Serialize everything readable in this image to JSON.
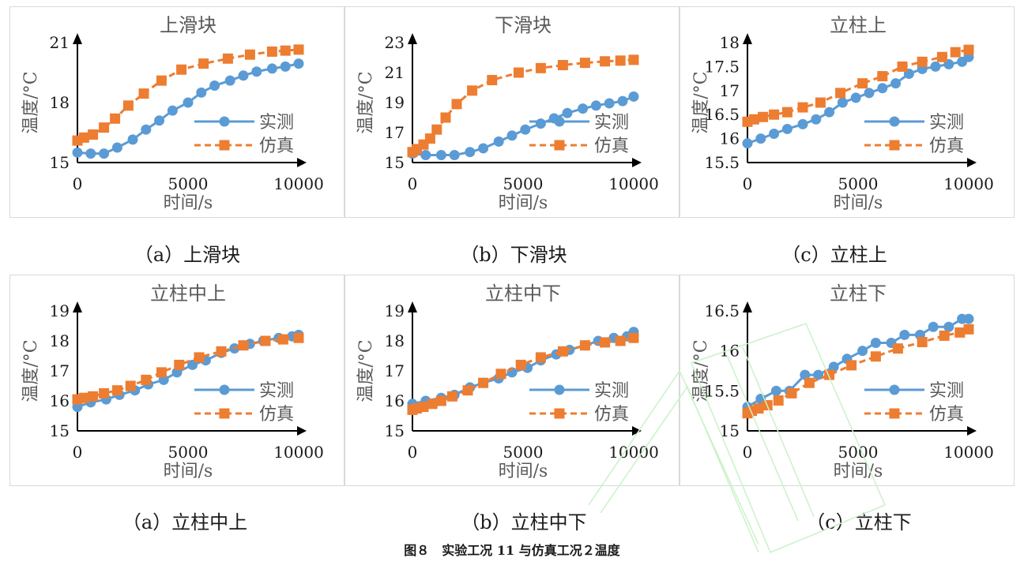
{
  "figure_title": "图８　实验工况 11 与仿真工况２温度",
  "captions": [
    "（a）上滑块",
    "（b）下滑块",
    "（c）立柱上",
    "（a）立柱中上",
    "（b）立柱中下",
    "（c）立柱下"
  ],
  "colors": {
    "measured": "#5B9BD5",
    "simulated": "#ED7D31",
    "axis": "#000000",
    "frame": "#D9D9D9",
    "watermark": "#C9F2C9"
  },
  "chart_data": [
    {
      "type": "line",
      "title": "上滑块",
      "xlabel": "时间/s",
      "ylabel": "温度/°C",
      "xlim": [
        0,
        10000
      ],
      "ylim": [
        15,
        21
      ],
      "xticks": [
        "0",
        "5000",
        "10000"
      ],
      "yticks": [
        "15",
        "18",
        "21"
      ],
      "legend_position": "right",
      "series": [
        {
          "name": "实测",
          "marker": "circle",
          "line": "solid",
          "x": [
            0,
            600,
            1200,
            1800,
            2500,
            3100,
            3700,
            4300,
            5000,
            5600,
            6200,
            6900,
            7500,
            8100,
            8800,
            9400,
            10000
          ],
          "y": [
            15.5,
            15.45,
            15.45,
            15.75,
            16.15,
            16.65,
            17.1,
            17.6,
            18.0,
            18.5,
            18.85,
            19.1,
            19.35,
            19.55,
            19.7,
            19.8,
            19.95
          ]
        },
        {
          "name": "仿真",
          "marker": "square",
          "line": "dashed",
          "x": [
            0,
            300,
            700,
            1200,
            1700,
            2300,
            3000,
            3800,
            4700,
            5700,
            6800,
            7800,
            8800,
            9400,
            10000
          ],
          "y": [
            16.1,
            16.25,
            16.4,
            16.75,
            17.2,
            17.85,
            18.45,
            19.1,
            19.65,
            19.95,
            20.2,
            20.4,
            20.55,
            20.6,
            20.65
          ]
        }
      ]
    },
    {
      "type": "line",
      "title": "下滑块",
      "xlabel": "时间/s",
      "ylabel": "温度/°C",
      "xlim": [
        0,
        10000
      ],
      "ylim": [
        15,
        23
      ],
      "xticks": [
        "0",
        "5000",
        "10000"
      ],
      "yticks": [
        "15",
        "17",
        "19",
        "21",
        "23"
      ],
      "legend_position": "right",
      "series": [
        {
          "name": "实测",
          "marker": "circle",
          "line": "solid",
          "x": [
            0,
            600,
            1300,
            1900,
            2600,
            3200,
            3900,
            4500,
            5100,
            5800,
            6400,
            7000,
            7700,
            8300,
            8900,
            9500,
            10000
          ],
          "y": [
            15.6,
            15.5,
            15.5,
            15.5,
            15.7,
            15.95,
            16.4,
            16.8,
            17.2,
            17.6,
            17.95,
            18.3,
            18.6,
            18.8,
            18.95,
            19.1,
            19.4
          ]
        },
        {
          "name": "仿真",
          "marker": "square",
          "line": "dashed",
          "x": [
            0,
            200,
            500,
            800,
            1100,
            1500,
            2000,
            2700,
            3600,
            4800,
            5800,
            6800,
            7800,
            8700,
            9400,
            10000
          ],
          "y": [
            15.7,
            15.9,
            16.2,
            16.6,
            17.2,
            18.0,
            18.9,
            19.8,
            20.5,
            21.0,
            21.3,
            21.5,
            21.65,
            21.75,
            21.8,
            21.85
          ]
        }
      ]
    },
    {
      "type": "line",
      "title": "立柱上",
      "xlabel": "时间/s",
      "ylabel": "温度/°C",
      "xlim": [
        0,
        10000
      ],
      "ylim": [
        15.5,
        18
      ],
      "xticks": [
        "0",
        "5000",
        "10000"
      ],
      "yticks": [
        "15.5",
        "16",
        "16.5",
        "17",
        "17.5",
        "18"
      ],
      "legend_position": "right",
      "series": [
        {
          "name": "实测",
          "marker": "circle",
          "line": "solid",
          "x": [
            0,
            600,
            1200,
            1800,
            2500,
            3100,
            3700,
            4300,
            4900,
            5500,
            6100,
            6700,
            7300,
            7900,
            8500,
            9100,
            9700,
            10000
          ],
          "y": [
            15.9,
            16.0,
            16.1,
            16.2,
            16.3,
            16.4,
            16.55,
            16.75,
            16.85,
            16.95,
            17.05,
            17.15,
            17.35,
            17.45,
            17.5,
            17.55,
            17.6,
            17.7
          ]
        },
        {
          "name": "仿真",
          "marker": "square",
          "line": "dashed",
          "x": [
            0,
            300,
            700,
            1200,
            1800,
            2500,
            3300,
            4200,
            5200,
            6100,
            7000,
            7900,
            8800,
            9400,
            10000
          ],
          "y": [
            16.35,
            16.4,
            16.45,
            16.5,
            16.55,
            16.65,
            16.75,
            16.95,
            17.15,
            17.3,
            17.5,
            17.6,
            17.7,
            17.8,
            17.85
          ]
        }
      ]
    },
    {
      "type": "line",
      "title": "立柱中上",
      "xlabel": "时间/s",
      "ylabel": "温度/°C",
      "xlim": [
        0,
        10000
      ],
      "ylim": [
        15,
        19
      ],
      "xticks": [
        "0",
        "5000",
        "10000"
      ],
      "yticks": [
        "15",
        "16",
        "17",
        "18",
        "19"
      ],
      "legend_position": "right",
      "series": [
        {
          "name": "实测",
          "marker": "circle",
          "line": "solid",
          "x": [
            0,
            600,
            1300,
            1900,
            2600,
            3200,
            3900,
            4500,
            5200,
            5800,
            6500,
            7100,
            7800,
            8400,
            9100,
            9700,
            10000
          ],
          "y": [
            15.8,
            15.95,
            16.05,
            16.2,
            16.35,
            16.55,
            16.7,
            16.95,
            17.2,
            17.35,
            17.6,
            17.75,
            17.9,
            18.0,
            18.1,
            18.15,
            18.2
          ]
        },
        {
          "name": "仿真",
          "marker": "square",
          "line": "dashed",
          "x": [
            0,
            300,
            700,
            1200,
            1800,
            2400,
            3100,
            3800,
            4600,
            5500,
            6500,
            7500,
            8500,
            9300,
            10000
          ],
          "y": [
            16.05,
            16.1,
            16.15,
            16.25,
            16.35,
            16.5,
            16.7,
            16.95,
            17.2,
            17.45,
            17.65,
            17.85,
            18.0,
            18.05,
            18.1
          ]
        }
      ]
    },
    {
      "type": "line",
      "title": "立柱中下",
      "xlabel": "时间/s",
      "ylabel": "温度/°C",
      "xlim": [
        0,
        10000
      ],
      "ylim": [
        15,
        19
      ],
      "xticks": [
        "0",
        "5000",
        "10000"
      ],
      "yticks": [
        "15",
        "16",
        "17",
        "18",
        "19"
      ],
      "legend_position": "right",
      "series": [
        {
          "name": "实测",
          "marker": "circle",
          "line": "solid",
          "x": [
            0,
            600,
            1300,
            1900,
            2600,
            3200,
            3900,
            4500,
            5200,
            5800,
            6500,
            7100,
            7800,
            8400,
            9100,
            9700,
            10000
          ],
          "y": [
            15.9,
            16.0,
            16.1,
            16.2,
            16.45,
            16.6,
            16.75,
            16.95,
            17.1,
            17.35,
            17.55,
            17.7,
            17.85,
            18.0,
            18.1,
            18.15,
            18.3
          ]
        },
        {
          "name": "仿真",
          "marker": "square",
          "line": "dashed",
          "x": [
            0,
            200,
            500,
            900,
            1300,
            1800,
            2500,
            3200,
            4000,
            4900,
            5800,
            6800,
            7800,
            8700,
            9400,
            10000
          ],
          "y": [
            15.7,
            15.75,
            15.8,
            15.9,
            16.0,
            16.15,
            16.35,
            16.6,
            16.9,
            17.2,
            17.45,
            17.65,
            17.85,
            17.95,
            18.0,
            18.1
          ]
        }
      ]
    },
    {
      "type": "line",
      "title": "立柱下",
      "xlabel": "时间/s",
      "ylabel": "温度/°C",
      "xlim": [
        0,
        10000
      ],
      "ylim": [
        15,
        16.5
      ],
      "xticks": [
        "0",
        "5000",
        "10000"
      ],
      "yticks": [
        "15",
        "15.5",
        "16",
        "16.5"
      ],
      "legend_position": "right",
      "series": [
        {
          "name": "实测",
          "marker": "circle",
          "line": "solid",
          "x": [
            0,
            600,
            1300,
            1900,
            2600,
            3200,
            3900,
            4500,
            5200,
            5800,
            6500,
            7100,
            7800,
            8400,
            9100,
            9700,
            10000
          ],
          "y": [
            15.3,
            15.4,
            15.5,
            15.5,
            15.7,
            15.7,
            15.8,
            15.9,
            16.0,
            16.1,
            16.1,
            16.2,
            16.2,
            16.3,
            16.3,
            16.4,
            16.4
          ]
        },
        {
          "name": "仿真",
          "marker": "square",
          "line": "dashed",
          "x": [
            0,
            200,
            500,
            900,
            1400,
            2000,
            2800,
            3700,
            4700,
            5800,
            6800,
            7900,
            8900,
            9600,
            10000
          ],
          "y": [
            15.22,
            15.25,
            15.28,
            15.32,
            15.38,
            15.47,
            15.6,
            15.7,
            15.82,
            15.93,
            16.03,
            16.11,
            16.19,
            16.23,
            16.27
          ]
        }
      ]
    }
  ]
}
